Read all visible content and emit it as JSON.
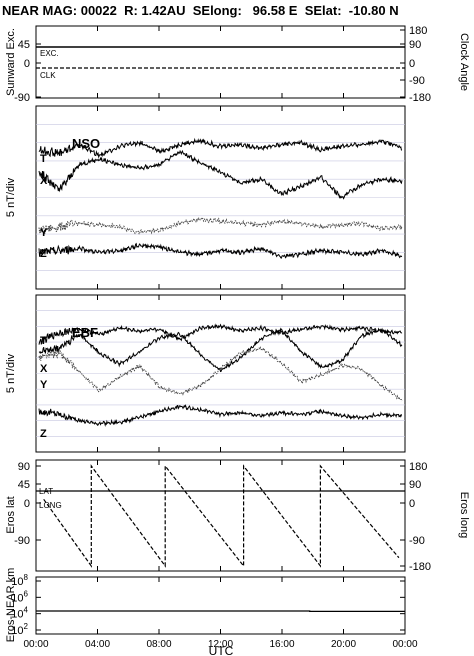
{
  "header": {
    "title": "NEAR MAG: 00022  R: 1.42AU  SElong:   96.58 E  SElat:  -10.80 N"
  },
  "chart_data": [
    {
      "type": "line",
      "panel": "sunward",
      "ylabel": "Sunward Exc.",
      "ylabel_right": "Clock Angle",
      "yticks_left": [
        "45",
        "0",
        "-90"
      ],
      "yticks_right": [
        "180",
        "90",
        "0",
        "-90",
        "-180"
      ],
      "series": [
        {
          "name": "EXC.",
          "style": "solid",
          "y": [
            38,
            38
          ]
        },
        {
          "name": "CLK",
          "style": "dashed",
          "y": [
            -8,
            -8
          ]
        }
      ]
    },
    {
      "type": "line",
      "panel": "NSO",
      "panel_label": "NSO",
      "ylabel": "5 nT/div",
      "series": [
        {
          "name": "T",
          "style": "solid",
          "y": [
            7.6,
            7.4,
            7.9,
            7.3,
            7.8,
            8.0,
            7.5,
            7.9,
            8.1,
            7.8,
            7.9,
            7.7,
            7.9,
            8.0,
            7.6,
            7.8,
            7.9,
            8.1,
            7.7
          ]
        },
        {
          "name": "X",
          "style": "solid",
          "y": [
            6.4,
            5.4,
            6.8,
            7.1,
            6.8,
            6.6,
            6.8,
            7.5,
            6.9,
            6.4,
            5.8,
            6.0,
            5.2,
            5.6,
            6.1,
            5.0,
            5.7,
            6.0,
            5.9
          ]
        },
        {
          "name": "Y",
          "style": "dotted",
          "y": [
            3.2,
            3.4,
            3.6,
            3.5,
            3.4,
            3.1,
            3.2,
            3.6,
            3.8,
            3.7,
            3.6,
            3.5,
            3.7,
            3.6,
            3.4,
            3.5,
            3.6,
            3.3,
            3.4
          ]
        },
        {
          "name": "Z",
          "style": "solid",
          "y": [
            2.0,
            2.1,
            2.2,
            2.0,
            2.1,
            2.4,
            2.3,
            2.0,
            1.9,
            2.1,
            2.0,
            2.2,
            1.8,
            1.9,
            2.1,
            2.0,
            1.9,
            2.1,
            1.8
          ]
        }
      ]
    },
    {
      "type": "line",
      "panel": "EBF",
      "panel_label": "EBF",
      "ylabel": "5 nT/div",
      "series": [
        {
          "name": "T",
          "style": "solid",
          "y": [
            7.0,
            7.6,
            7.8,
            7.5,
            7.9,
            7.7,
            7.8,
            7.2,
            7.9,
            8.0,
            7.7,
            7.9,
            7.6,
            7.8,
            8.0,
            7.8,
            7.9,
            7.7,
            7.6
          ]
        },
        {
          "name": "X",
          "style": "solid",
          "y": [
            6.4,
            6.6,
            7.5,
            6.3,
            5.6,
            6.4,
            7.3,
            7.5,
            6.2,
            5.2,
            6.0,
            7.2,
            7.8,
            6.4,
            5.4,
            5.8,
            7.4,
            7.8,
            6.8
          ]
        },
        {
          "name": "Y",
          "style": "dotted",
          "y": [
            6.0,
            6.3,
            5.1,
            3.9,
            4.8,
            5.5,
            4.1,
            3.7,
            4.2,
            5.3,
            6.3,
            6.6,
            5.7,
            4.5,
            4.9,
            5.5,
            5.3,
            4.2,
            3.3
          ]
        },
        {
          "name": "Z",
          "style": "solid",
          "y": [
            2.6,
            2.4,
            2.0,
            1.8,
            1.9,
            2.2,
            2.6,
            2.9,
            2.7,
            2.4,
            2.5,
            2.3,
            2.5,
            2.4,
            2.6,
            2.3,
            2.2,
            2.4,
            2.3
          ]
        }
      ]
    },
    {
      "type": "line",
      "panel": "eros-position",
      "ylabel": "Eros lat",
      "ylabel_right": "Eros long",
      "yticks_left": [
        "90",
        "45",
        "0",
        "-90"
      ],
      "yticks_right": [
        "180",
        "90",
        "0",
        "-90",
        "-180"
      ],
      "ylim": [
        -90,
        90
      ],
      "series": [
        {
          "name": "LAT",
          "style": "solid",
          "x_hours": [
            0,
            24
          ],
          "y": [
            45,
            45
          ]
        },
        {
          "name": "LONG",
          "style": "dashed",
          "x_hours": [
            0.5,
            3.6,
            3.6,
            8.4,
            8.4,
            13.5,
            13.5,
            18.5,
            18.5,
            23.6,
            23.6
          ],
          "y": [
            30,
            -90,
            90,
            -90,
            90,
            -90,
            90,
            -90,
            90,
            -75,
            -75
          ]
        }
      ]
    },
    {
      "type": "line",
      "panel": "eros-distance",
      "ylabel": "Eros-NEAR km",
      "yscale": "log",
      "yticks_left": [
        "10^8",
        "10^6",
        "10^4",
        "10^2"
      ],
      "ylim": [
        100,
        100000000
      ],
      "series": [
        {
          "name": "",
          "style": "solid",
          "x_hours": [
            0,
            17.8,
            17.8,
            24
          ],
          "y": [
            21000,
            21000,
            19000,
            19000
          ]
        }
      ]
    }
  ],
  "xaxis": {
    "ticks": [
      "00:00",
      "04:00",
      "08:00",
      "12:00",
      "16:00",
      "20:00",
      "00:00"
    ],
    "label": "UTC"
  }
}
